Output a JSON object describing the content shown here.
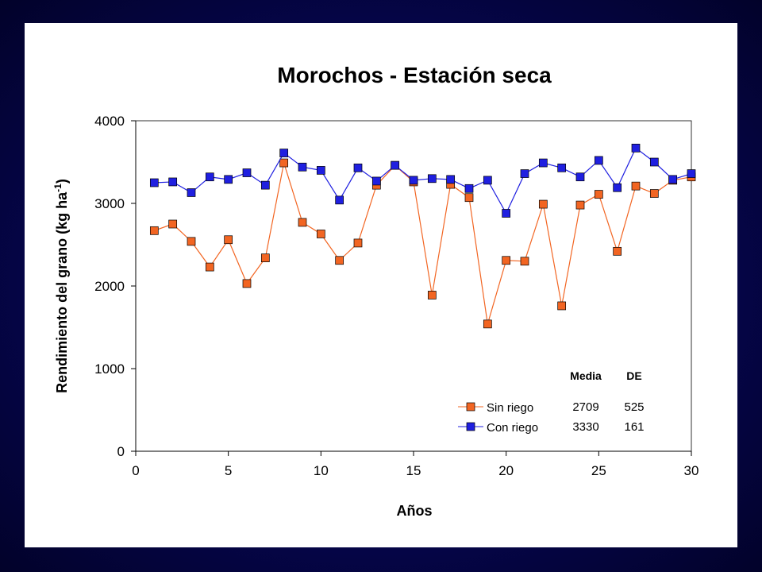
{
  "chart_data": {
    "type": "line",
    "title": "Morochos - Estación seca",
    "xlabel": "Años",
    "ylabel": "Rendimiento del grano (kg ha",
    "ylabel_superscript": "-1",
    "ylabel_suffix": ")",
    "xlim": [
      0,
      30
    ],
    "ylim": [
      0,
      4000
    ],
    "xticks": [
      0,
      5,
      10,
      15,
      20,
      25,
      30
    ],
    "yticks": [
      0,
      1000,
      2000,
      3000,
      4000
    ],
    "grid": false,
    "legend_position": "bottom-right",
    "x": [
      1,
      2,
      3,
      4,
      5,
      6,
      7,
      8,
      9,
      10,
      11,
      12,
      13,
      14,
      15,
      16,
      17,
      18,
      19,
      20,
      21,
      22,
      23,
      24,
      25,
      26,
      27,
      28,
      29,
      30
    ],
    "series": [
      {
        "name": "Sin riego",
        "color": "#f26522",
        "marker": "square",
        "values": [
          2670,
          2750,
          2540,
          2230,
          2560,
          2030,
          2340,
          3490,
          2770,
          2630,
          2310,
          2520,
          3220,
          3460,
          3260,
          1890,
          3230,
          3070,
          1540,
          2310,
          2300,
          2990,
          1760,
          2980,
          3110,
          2420,
          3210,
          3120,
          3280,
          3320
        ]
      },
      {
        "name": "Con riego",
        "color": "#1f1fe0",
        "marker": "square",
        "values": [
          3250,
          3260,
          3130,
          3320,
          3290,
          3370,
          3220,
          3610,
          3440,
          3400,
          3040,
          3430,
          3270,
          3460,
          3280,
          3300,
          3290,
          3180,
          3280,
          2880,
          3360,
          3490,
          3430,
          3320,
          3520,
          3190,
          3670,
          3500,
          3290,
          3360
        ]
      }
    ],
    "stats_table": {
      "headers": [
        "Media",
        "DE"
      ],
      "rows": [
        {
          "series": "Sin riego",
          "media": "2709",
          "de": "525"
        },
        {
          "series": "Con riego",
          "media": "3330",
          "de": "161"
        }
      ]
    }
  }
}
